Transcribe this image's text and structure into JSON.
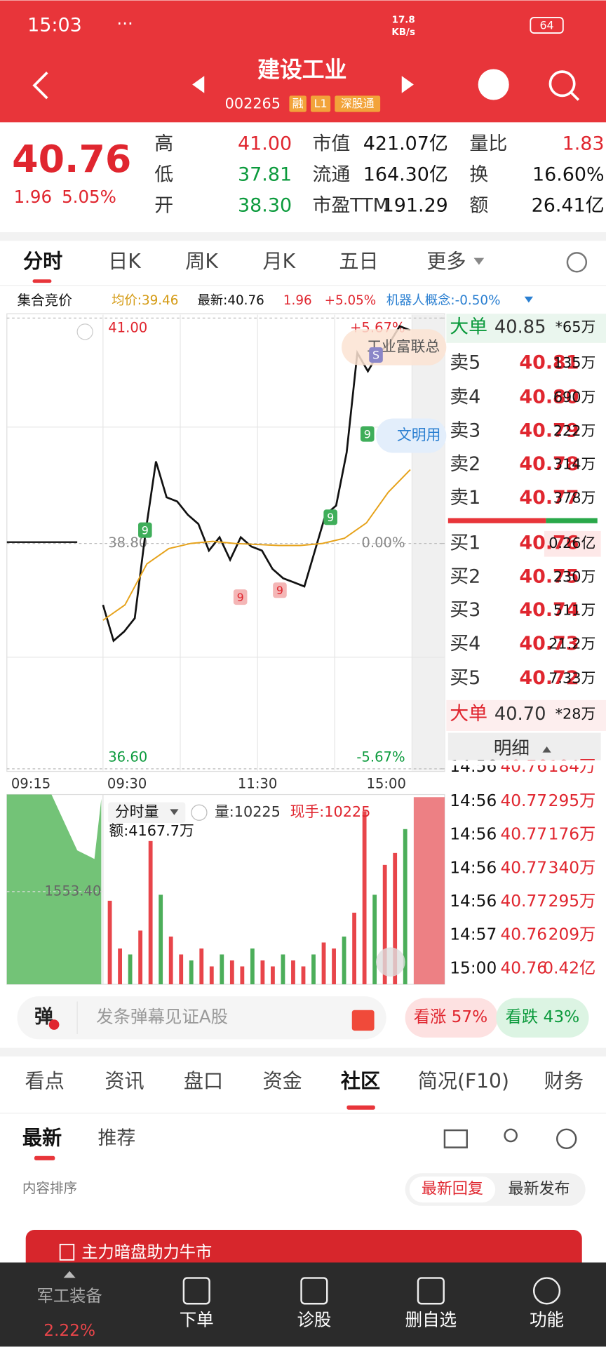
{
  "status_bar": {
    "time": "15:03",
    "net_speed": "17.8",
    "net_unit": "KB/s",
    "battery": "64"
  },
  "header": {
    "title": "建设工业",
    "code": "002265",
    "tags": [
      "融",
      "L1",
      "深股通"
    ]
  },
  "quote": {
    "price": "40.76",
    "change": "1.96",
    "change_pct": "5.05%",
    "stats": [
      [
        {
          "label": "高",
          "value": "41.00"
        },
        {
          "label": "市值",
          "value": "421.07亿"
        },
        {
          "label": "量比",
          "value": "1.83"
        }
      ],
      [
        {
          "label": "低",
          "value": "37.81"
        },
        {
          "label": "流通",
          "value": "164.30亿"
        },
        {
          "label": "换",
          "value": "16.60%"
        }
      ],
      [
        {
          "label": "开",
          "value": "38.30"
        },
        {
          "label": "市盈TTM",
          "value": "191.29"
        },
        {
          "label": "额",
          "value": "26.41亿"
        }
      ]
    ]
  },
  "chart_tabs": [
    "分时",
    "日K",
    "周K",
    "月K",
    "五日",
    "更多"
  ],
  "info_row": {
    "auction": "集合竞价",
    "avg": "均价:39.46",
    "latest": "最新:40.76",
    "change": "1.96",
    "change_pct": "+5.05%",
    "concept": "机器人概念:-0.50%"
  },
  "chart_data": [
    {
      "type": "line",
      "x_labels": [
        "09:15",
        "09:30",
        "11:30",
        "15:00"
      ],
      "ylim": [
        36.6,
        41.0
      ],
      "yticks": [
        {
          "value": 41.0,
          "label": "41.00"
        },
        {
          "value": 38.8,
          "label": "38.80"
        },
        {
          "value": 36.6,
          "label": "36.60"
        }
      ],
      "y2lim": [
        -5.67,
        5.67
      ],
      "y2ticks": [
        {
          "value": 5.67,
          "label": "+5.67%"
        },
        {
          "value": 0,
          "label": "0.00%"
        },
        {
          "value": -5.67,
          "label": "-5.67%"
        }
      ],
      "grid": true,
      "series": [
        {
          "color": "#111111",
          "values": [
            38.2,
            37.85,
            37.94,
            38.07,
            38.9,
            39.6,
            39.25,
            39.21,
            39.08,
            38.99,
            38.73,
            38.86,
            38.64,
            38.86,
            38.77,
            38.73,
            38.55,
            38.46,
            38.42,
            38.38,
            38.73,
            39.08,
            39.17,
            39.69,
            40.66,
            40.48,
            40.66,
            40.75,
            40.92,
            40.88
          ]
        },
        {
          "color": "#e6a21a",
          "values": [
            38.05,
            38.2,
            38.6,
            38.75,
            38.8,
            38.82,
            38.8,
            38.79,
            38.78,
            38.78,
            38.8,
            38.85,
            39.0,
            39.3,
            39.52
          ]
        }
      ],
      "annotations": [
        "工业富联总",
        "文明用",
        "9",
        "9",
        "9",
        "9",
        "9",
        "S"
      ]
    },
    {
      "type": "bar",
      "title": "分时量",
      "annotations": [
        "量:10225",
        "现手:10225",
        "额:4167.7万"
      ],
      "ylim": [
        0,
        3106.8
      ],
      "yticks": [
        {
          "value": 1553.4,
          "label": "1553.40"
        }
      ],
      "color": "#e8454a",
      "values": [
        1400,
        600,
        500,
        900,
        2400,
        1500,
        800,
        500,
        400,
        600,
        300,
        500,
        400,
        300,
        600,
        400,
        300,
        500,
        400,
        300,
        500,
        700,
        600,
        800,
        1200,
        2900,
        1500,
        2000,
        2200,
        2600
      ]
    }
  ],
  "order_book": {
    "top": {
      "label": "大单",
      "price": "40.85",
      "volume": "*65万"
    },
    "asks": [
      {
        "label": "卖5",
        "price": "40.81",
        "volume": "135万"
      },
      {
        "label": "卖4",
        "price": "40.80",
        "volume": "690万"
      },
      {
        "label": "卖3",
        "price": "40.79",
        "volume": "222万"
      },
      {
        "label": "卖2",
        "price": "40.78",
        "volume": "314万"
      },
      {
        "label": "卖1",
        "price": "40.77",
        "volume": "378万"
      }
    ],
    "bids": [
      {
        "label": "买1",
        "price": "40.76",
        "volume": "0.26亿"
      },
      {
        "label": "买2",
        "price": "40.75",
        "volume": "230万"
      },
      {
        "label": "买3",
        "price": "40.74",
        "volume": "511万"
      },
      {
        "label": "买4",
        "price": "40.73",
        "volume": "21.2万"
      },
      {
        "label": "买5",
        "price": "40.72",
        "volume": "7.33万"
      }
    ],
    "bottom": {
      "label": "大单",
      "price": "40.70",
      "volume": "*28万"
    },
    "detail": "明细",
    "trades": [
      {
        "time": "14:56",
        "price": "40.76",
        "volume": "184万"
      },
      {
        "time": "14:56",
        "price": "40.77",
        "volume": "295万"
      },
      {
        "time": "14:56",
        "price": "40.77",
        "volume": "176万"
      },
      {
        "time": "14:56",
        "price": "40.77",
        "volume": "340万"
      },
      {
        "time": "14:56",
        "price": "40.77",
        "volume": "295万"
      },
      {
        "time": "14:57",
        "price": "40.76",
        "volume": "209万"
      },
      {
        "time": "15:00",
        "price": "40.76",
        "volume": "0.42亿"
      }
    ]
  },
  "danmaku": {
    "badge": "弹",
    "placeholder": "发条弹幕见证A股",
    "bullish": "看涨 57%",
    "bearish": "看跌 43%"
  },
  "section_tabs": [
    "看点",
    "资讯",
    "盘口",
    "资金",
    "社区",
    "简况(F10)",
    "财务"
  ],
  "community": {
    "tabs": [
      "最新",
      "推荐"
    ],
    "sort_label": "内容排序",
    "sort_options": [
      "最新回复",
      "最新发布"
    ],
    "banner": "主力暗盘助力牛市"
  },
  "bottom_nav": {
    "sector": "军工装备",
    "sector_change": "2.22%",
    "items": [
      "下单",
      "诊股",
      "删自选",
      "功能"
    ]
  }
}
